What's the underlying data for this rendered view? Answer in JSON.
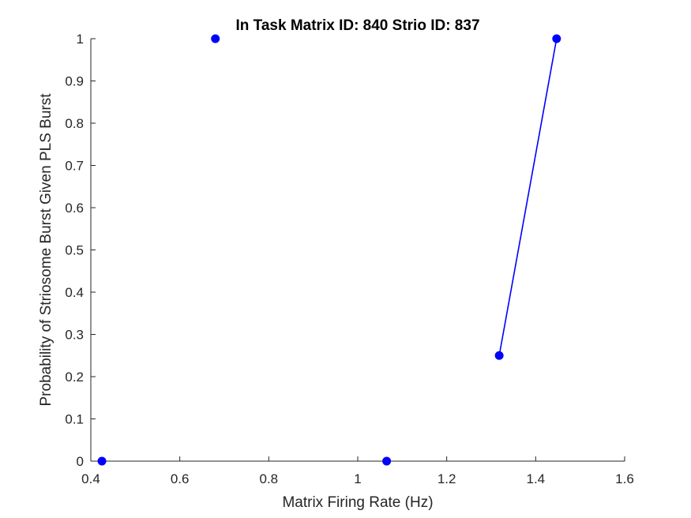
{
  "chart_data": {
    "type": "scatter",
    "title": "In Task Matrix ID: 840 Strio ID: 837",
    "xlabel": "Matrix Firing Rate (Hz)",
    "ylabel": "Probability of Striosome Burst Given PLS Burst",
    "xlim": [
      0.4,
      1.6
    ],
    "ylim": [
      0,
      1
    ],
    "xticks": [
      "0.4",
      "0.6",
      "0.8",
      "1",
      "1.2",
      "1.4",
      "1.6"
    ],
    "yticks": [
      "0",
      "0.1",
      "0.2",
      "0.3",
      "0.4",
      "0.5",
      "0.6",
      "0.7",
      "0.8",
      "0.9",
      "1"
    ],
    "grid": false,
    "legend": "none",
    "color": "#0000ff",
    "points": [
      {
        "x": 0.425,
        "y": 0
      },
      {
        "x": 0.68,
        "y": 1
      },
      {
        "x": 1.065,
        "y": 0
      },
      {
        "x": 1.318,
        "y": 0.25
      },
      {
        "x": 1.447,
        "y": 1
      }
    ],
    "line_segments": [
      {
        "from": {
          "x": 1.318,
          "y": 0.25
        },
        "to": {
          "x": 1.447,
          "y": 1
        }
      }
    ]
  }
}
